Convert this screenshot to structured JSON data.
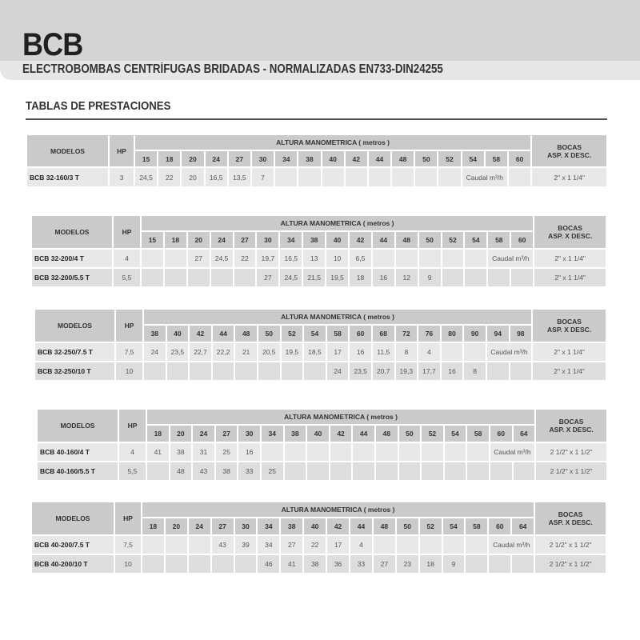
{
  "header": {
    "title": "BCB",
    "subtitle": "ELECTROBOMBAS CENTRÍFUGAS BRIDADAS - NORMALIZADAS EN733-DIN24255",
    "section": "TABLAS DE PRESTACIONES"
  },
  "labels": {
    "modelos": "MODELOS",
    "hp": "HP",
    "altura": "ALTURA MANOMETRICA ( metros )",
    "bocas_1": "BOCAS",
    "bocas_2": "ASP. X DESC.",
    "caudal": "Caudal m³/h"
  },
  "colors": {
    "header_band": "#d3d4d6",
    "table_header": "#c9cacc",
    "cell": "#e7e8e9"
  },
  "tables": [
    {
      "heights": [
        "15",
        "18",
        "20",
        "24",
        "27",
        "30",
        "34",
        "38",
        "40",
        "42",
        "44",
        "48",
        "50",
        "52",
        "54",
        "58",
        "60"
      ],
      "caudal_under": [
        "54",
        "58"
      ],
      "rows": [
        {
          "model": "BCB 32-160/3 T",
          "hp": "3",
          "values": [
            "24,5",
            "22",
            "20",
            "16,5",
            "13,5",
            "7",
            "",
            "",
            "",
            "",
            "",
            "",
            "",
            "",
            "",
            "",
            ""
          ],
          "bocas": "2\" x 1 1/4\""
        }
      ]
    },
    {
      "heights": [
        "15",
        "18",
        "20",
        "24",
        "27",
        "30",
        "34",
        "38",
        "40",
        "42",
        "44",
        "48",
        "50",
        "52",
        "54",
        "58",
        "60"
      ],
      "caudal_under": [
        "58",
        "60"
      ],
      "rows": [
        {
          "model": "BCB 32-200/4 T",
          "hp": "4",
          "values": [
            "",
            "",
            "27",
            "24,5",
            "22",
            "19,7",
            "16,5",
            "13",
            "10",
            "6,5",
            "",
            "",
            "",
            "",
            "",
            "",
            ""
          ],
          "bocas": "2\" x 1 1/4\""
        },
        {
          "model": "BCB 32-200/5.5 T",
          "hp": "5,5",
          "values": [
            "",
            "",
            "",
            "",
            "",
            "27",
            "24,5",
            "21,5",
            "19,5",
            "18",
            "16",
            "12",
            "9",
            "",
            "",
            "",
            ""
          ],
          "bocas": "2\" x 1 1/4\""
        }
      ]
    },
    {
      "heights": [
        "38",
        "40",
        "42",
        "44",
        "48",
        "50",
        "52",
        "54",
        "58",
        "60",
        "68",
        "72",
        "76",
        "80",
        "90",
        "94",
        "98"
      ],
      "caudal_under": [
        "94",
        "98"
      ],
      "rows": [
        {
          "model": "BCB 32-250/7.5 T",
          "hp": "7,5",
          "values": [
            "24",
            "23,5",
            "22,7",
            "22,2",
            "21",
            "20,5",
            "19,5",
            "18,5",
            "17",
            "16",
            "11,5",
            "8",
            "4",
            "",
            "",
            "",
            ""
          ],
          "bocas": "2\" x 1 1/4\""
        },
        {
          "model": "BCB 32-250/10 T",
          "hp": "10",
          "values": [
            "",
            "",
            "",
            "",
            "",
            "",
            "",
            "",
            "24",
            "23,5",
            "20,7",
            "19,3",
            "17,7",
            "16",
            "8",
            "",
            ""
          ],
          "bocas": "2\" x 1 1/4\""
        }
      ]
    },
    {
      "heights": [
        "18",
        "20",
        "24",
        "27",
        "30",
        "34",
        "38",
        "40",
        "42",
        "44",
        "48",
        "50",
        "52",
        "54",
        "58",
        "60",
        "64"
      ],
      "caudal_under": [
        "60",
        "64"
      ],
      "rows": [
        {
          "model": "BCB 40-160/4 T",
          "hp": "4",
          "values": [
            "41",
            "38",
            "31",
            "25",
            "16",
            "",
            "",
            "",
            "",
            "",
            "",
            "",
            "",
            "",
            "",
            "",
            ""
          ],
          "bocas": "2 1/2\" x 1 1/2\""
        },
        {
          "model": "BCB 40-160/5.5 T",
          "hp": "5,5",
          "values": [
            "",
            "48",
            "43",
            "38",
            "33",
            "25",
            "",
            "",
            "",
            "",
            "",
            "",
            "",
            "",
            "",
            "",
            ""
          ],
          "bocas": "2 1/2\" x 1 1/2\""
        }
      ]
    },
    {
      "heights": [
        "18",
        "20",
        "24",
        "27",
        "30",
        "34",
        "38",
        "40",
        "42",
        "44",
        "48",
        "50",
        "52",
        "54",
        "58",
        "60",
        "64"
      ],
      "caudal_under": [
        "60",
        "64"
      ],
      "rows": [
        {
          "model": "BCB 40-200/7.5 T",
          "hp": "7,5",
          "values": [
            "",
            "",
            "",
            "43",
            "39",
            "34",
            "27",
            "22",
            "17",
            "4",
            "",
            "",
            "",
            "",
            "",
            "",
            ""
          ],
          "bocas": "2 1/2\" x 1 1/2\""
        },
        {
          "model": "BCB 40-200/10 T",
          "hp": "10",
          "values": [
            "",
            "",
            "",
            "",
            "",
            "46",
            "41",
            "38",
            "36",
            "33",
            "27",
            "23",
            "18",
            "9",
            "",
            "",
            ""
          ],
          "bocas": "2 1/2\" x 1 1/2\""
        }
      ]
    }
  ]
}
